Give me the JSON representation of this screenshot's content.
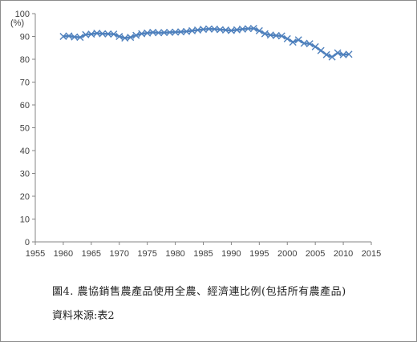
{
  "chart_data": {
    "type": "line",
    "title": "",
    "xlabel": "",
    "ylabel": "(%)",
    "xlim": [
      1955,
      2015
    ],
    "ylim": [
      0,
      100
    ],
    "x_ticks": [
      1955,
      1960,
      1965,
      1970,
      1975,
      1980,
      1985,
      1990,
      1995,
      2000,
      2005,
      2010,
      2015
    ],
    "y_ticks": [
      0,
      10,
      20,
      30,
      40,
      50,
      60,
      70,
      80,
      90,
      100
    ],
    "grid": false,
    "legend": "none",
    "series": [
      {
        "color": "#4f81bd",
        "marker": "x",
        "x": [
          1960,
          1961,
          1962,
          1963,
          1964,
          1965,
          1966,
          1967,
          1968,
          1969,
          1970,
          1971,
          1972,
          1973,
          1974,
          1975,
          1976,
          1977,
          1978,
          1979,
          1980,
          1981,
          1982,
          1983,
          1984,
          1985,
          1986,
          1987,
          1988,
          1989,
          1990,
          1991,
          1992,
          1993,
          1994,
          1995,
          1996,
          1997,
          1998,
          1999,
          2000,
          2001,
          2002,
          2003,
          2004,
          2005,
          2006,
          2007,
          2008,
          2009,
          2010,
          2011
        ],
        "y": [
          90.0,
          90.2,
          89.8,
          89.6,
          90.8,
          91.0,
          91.4,
          91.2,
          91.1,
          91.0,
          90.0,
          89.3,
          89.6,
          90.5,
          91.2,
          91.5,
          91.8,
          91.6,
          91.7,
          91.8,
          91.9,
          92.0,
          92.2,
          92.5,
          92.8,
          93.1,
          93.3,
          93.2,
          93.0,
          92.8,
          92.6,
          92.9,
          93.2,
          93.4,
          93.5,
          92.5,
          91.2,
          90.6,
          90.4,
          90.2,
          89.0,
          87.5,
          88.5,
          87.0,
          86.8,
          85.5,
          83.8,
          82.0,
          81.0,
          82.8,
          82.0,
          82.2
        ]
      }
    ]
  },
  "caption": {
    "line1": "圖4.  農協銷售農產品使用全農、經濟連比例(包括所有農產品)",
    "line2": "資料來源:表2"
  }
}
